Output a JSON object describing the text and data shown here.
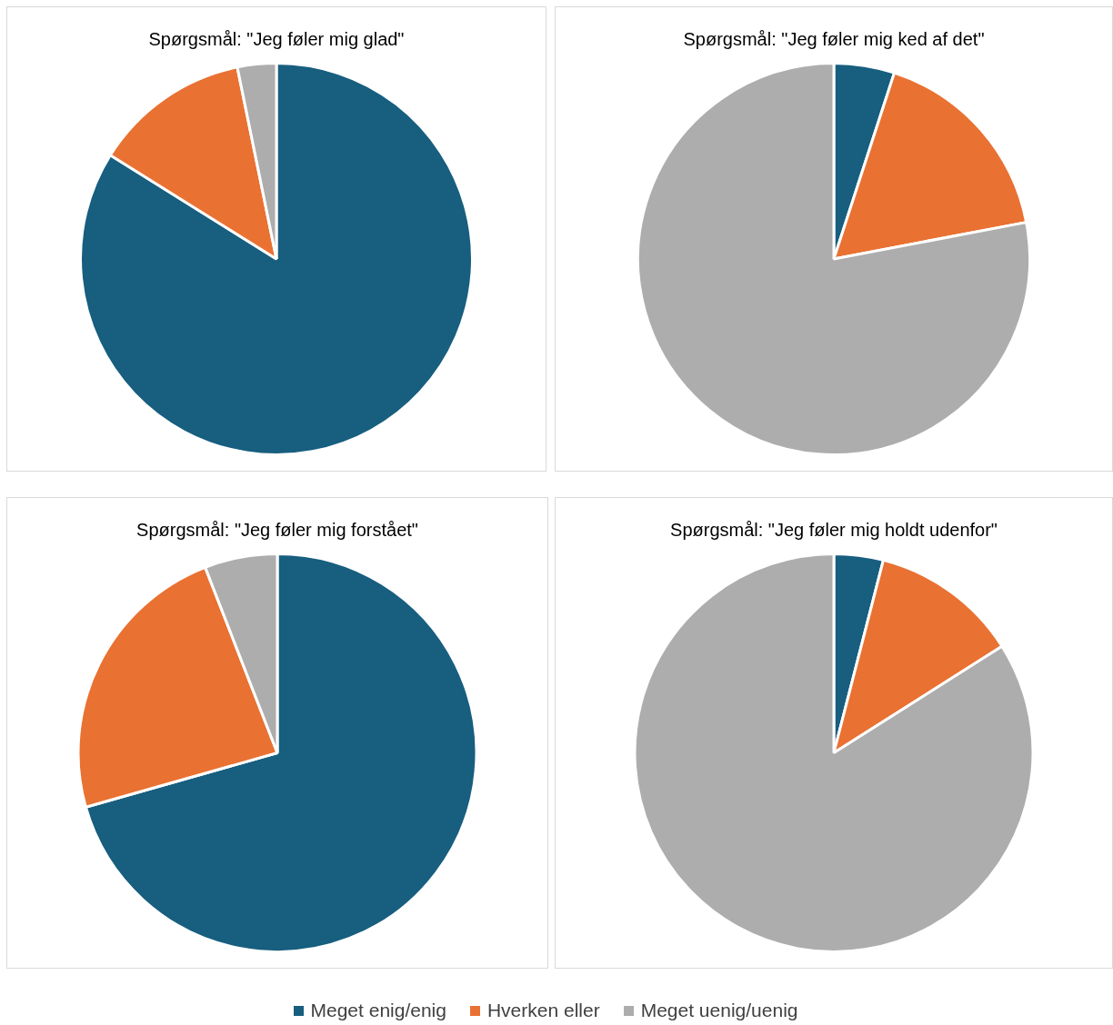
{
  "chart_data": [
    {
      "type": "pie",
      "title": "Spørgsmål: \"Jeg føler mig glad\"",
      "categories": [
        "Meget enig/enig",
        "Hverken eller",
        "Meget uenig/uenig"
      ],
      "values": [
        83.9,
        12.9,
        3.2
      ],
      "colors": [
        "#175e7f",
        "#e97132",
        "#adadad"
      ],
      "legend": "bottom"
    },
    {
      "type": "pie",
      "title": "Spørgsmål: \"Jeg føler mig ked af det\"",
      "categories": [
        null,
        null,
        null
      ],
      "values": [
        5,
        17,
        78
      ],
      "colors": [
        "#175e7f",
        "#e97132",
        "#adadad"
      ]
    },
    {
      "type": "pie",
      "title": "Spørgsmål: \"Jeg føler mig forstået\"",
      "categories": [
        null,
        null,
        null
      ],
      "values": [
        70.6,
        23.5,
        5.9
      ],
      "colors": [
        "#175e7f",
        "#e97132",
        "#adadad"
      ]
    },
    {
      "type": "pie",
      "title": "Spørgsmål: \"Jeg føler mig holdt udenfor\"",
      "categories": [
        null,
        null,
        null
      ],
      "values": [
        4,
        12,
        84
      ],
      "colors": [
        "#175e7f",
        "#e97132",
        "#adadad"
      ]
    }
  ]
}
